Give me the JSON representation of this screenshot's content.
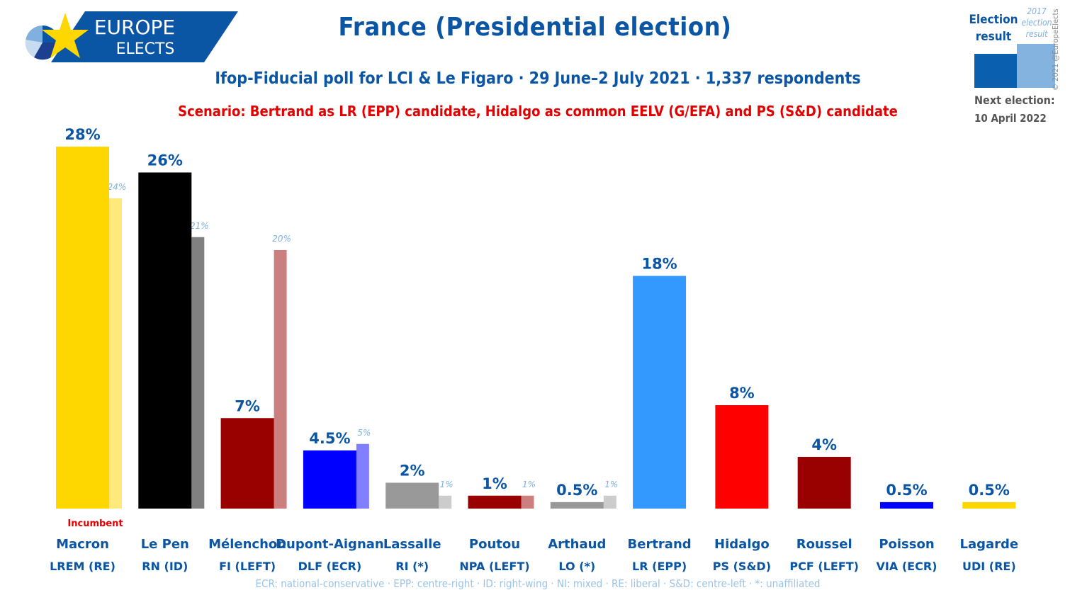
{
  "header": {
    "logo_line1": "EUROPE",
    "logo_line2": "ELECTS",
    "title": "France (Presidential election)",
    "subtitle": "Ifop-Fiducial poll for LCI & Le Figaro · 29 June–2 July 2021 · 1,337 respondents",
    "scenario": "Scenario: Bertrand as LR (EPP) candidate, Hidalgo as common EELV (G/EFA) and PS (S&D) candidate"
  },
  "legend": {
    "poll_label_line1": "Election",
    "poll_label_line2": "result",
    "prev_label_line1": "2017",
    "prev_label_line2": "election",
    "prev_label_line3": "result",
    "next_election_label": "Next election:",
    "next_election_date": "10 April 2022",
    "copyright": "© 2021 @EuropeElects"
  },
  "footer": {
    "glossary": "ECR: national-conservative · EPP: centre-right · ID: right-wing · NI: mixed · RE: liberal · S&D: centre-left · *: unaffiliated"
  },
  "chart_data": {
    "type": "bar",
    "ylim": [
      0,
      28
    ],
    "categories": [
      "Macron",
      "Le Pen",
      "Mélenchon",
      "Dupont-Aignan",
      "Lassalle",
      "Poutou",
      "Arthaud",
      "Bertrand",
      "Hidalgo",
      "Roussel",
      "Poisson",
      "Lagarde"
    ],
    "parties": [
      "LREM (RE)",
      "RN (ID)",
      "FI (LEFT)",
      "DLF (ECR)",
      "RI (*)",
      "NPA (LEFT)",
      "LO (*)",
      "LR (EPP)",
      "PS (S&D)",
      "PCF (LEFT)",
      "VIA (ECR)",
      "UDI (RE)"
    ],
    "values": [
      28,
      26,
      7,
      4.5,
      2,
      1,
      0.5,
      18,
      8,
      4,
      0.5,
      0.5
    ],
    "value_labels": [
      "28%",
      "26%",
      "7%",
      "4.5%",
      "2%",
      "1%",
      "0.5%",
      "18%",
      "8%",
      "4%",
      "0.5%",
      "0.5%"
    ],
    "previous_values": [
      24,
      21,
      20,
      5,
      1,
      1,
      1,
      null,
      null,
      null,
      null,
      null
    ],
    "previous_labels": [
      "24%",
      "21%",
      "20%",
      "5%",
      "1%",
      "1%",
      "1%",
      "",
      "",
      "",
      "",
      ""
    ],
    "colors": [
      "#ffd700",
      "#000000",
      "#990000",
      "#0000ff",
      "#999999",
      "#990000",
      "#999999",
      "#3399ff",
      "#ff0000",
      "#990000",
      "#0000ff",
      "#ffd700"
    ],
    "previous_colors": [
      "#ffe97a",
      "#808080",
      "#cc7f7f",
      "#7f7fff",
      "#cccccc",
      "#cc7f7f",
      "#cccccc",
      null,
      null,
      null,
      null,
      null
    ],
    "annotation": {
      "category": "Macron",
      "text": "Incumbent",
      "color": "#e30000"
    }
  }
}
